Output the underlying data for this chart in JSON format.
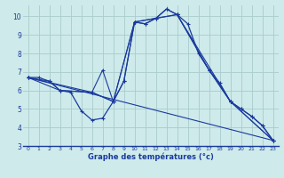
{
  "xlabel": "Graphe des températures (°c)",
  "bg_color": "#ceeaea",
  "line_color": "#1a3a9e",
  "grid_color": "#aacccc",
  "xlim": [
    -0.5,
    23.5
  ],
  "ylim": [
    3.0,
    10.6
  ],
  "xticks": [
    0,
    1,
    2,
    3,
    4,
    5,
    6,
    7,
    8,
    9,
    10,
    11,
    12,
    13,
    14,
    15,
    16,
    17,
    18,
    19,
    20,
    21,
    22,
    23
  ],
  "yticks": [
    3,
    4,
    5,
    6,
    7,
    8,
    9,
    10
  ],
  "curve1_x": [
    0,
    1,
    2,
    3,
    4,
    5,
    6,
    7,
    8,
    9,
    10,
    11,
    12,
    13,
    14,
    15,
    16,
    17,
    18,
    19,
    20,
    21,
    22,
    23
  ],
  "curve1_y": [
    6.7,
    6.7,
    6.5,
    6.0,
    5.9,
    4.9,
    4.4,
    4.5,
    5.4,
    6.5,
    9.7,
    9.6,
    9.9,
    10.4,
    10.1,
    9.6,
    8.0,
    7.1,
    6.4,
    5.4,
    5.0,
    4.6,
    4.1,
    3.3
  ],
  "curve2_x": [
    0,
    2,
    3,
    6,
    8,
    9,
    10,
    11,
    12,
    13,
    14,
    17,
    19,
    20,
    21,
    22,
    23
  ],
  "curve2_y": [
    6.7,
    6.5,
    6.0,
    5.9,
    5.4,
    6.5,
    9.7,
    9.6,
    9.9,
    10.4,
    10.1,
    7.1,
    5.4,
    5.0,
    4.6,
    4.1,
    3.3
  ],
  "curve3_x": [
    0,
    3,
    6,
    8,
    10,
    14,
    17,
    19,
    23
  ],
  "curve3_y": [
    6.7,
    6.0,
    5.9,
    5.4,
    9.7,
    10.1,
    7.1,
    5.4,
    3.3
  ],
  "curve4_x": [
    0,
    6,
    7,
    8,
    10,
    14,
    19,
    23
  ],
  "curve4_y": [
    6.7,
    5.9,
    7.1,
    5.4,
    9.7,
    10.1,
    5.4,
    3.3
  ],
  "curve5_x": [
    0,
    23
  ],
  "curve5_y": [
    6.7,
    3.3
  ]
}
